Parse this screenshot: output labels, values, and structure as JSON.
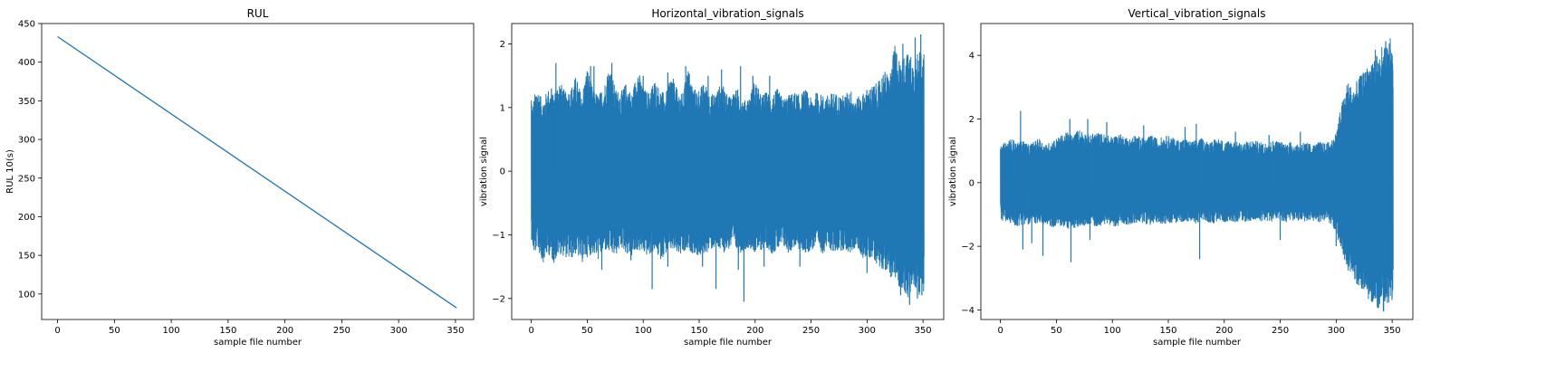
{
  "chart_data": [
    {
      "type": "line",
      "title": "RUL",
      "xlabel": "sample file number",
      "ylabel": "RUL 10(s)",
      "xlim": [
        -14,
        366
      ],
      "ylim": [
        67,
        450
      ],
      "xticks": [
        0,
        50,
        100,
        150,
        200,
        250,
        300,
        350
      ],
      "yticks": [
        100,
        150,
        200,
        250,
        300,
        350,
        400,
        450
      ],
      "grid": false,
      "color": "#1f77b4",
      "series": [
        {
          "x": [
            0,
            351
          ],
          "y": [
            433,
            82
          ]
        }
      ]
    },
    {
      "type": "line",
      "title": "Horizontal_vibration_signals",
      "xlabel": "sample file number",
      "ylabel": "vibration signal",
      "xlim": [
        -17.5,
        368.5
      ],
      "ylim": [
        -2.33,
        2.32
      ],
      "xticks": [
        0,
        50,
        100,
        150,
        200,
        250,
        300,
        350
      ],
      "yticks": [
        -2,
        -1,
        0,
        1,
        2
      ],
      "grid": false,
      "color": "#1f77b4",
      "envelope": {
        "x": [
          0,
          1,
          3,
          5,
          10,
          15,
          20,
          25,
          30,
          35,
          40,
          45,
          50,
          55,
          60,
          65,
          70,
          75,
          80,
          85,
          90,
          95,
          100,
          105,
          110,
          115,
          120,
          125,
          130,
          135,
          140,
          145,
          150,
          155,
          160,
          165,
          170,
          175,
          180,
          185,
          190,
          195,
          200,
          205,
          210,
          215,
          220,
          225,
          230,
          235,
          240,
          245,
          250,
          255,
          260,
          265,
          270,
          275,
          280,
          285,
          290,
          295,
          300,
          305,
          310,
          315,
          320,
          325,
          330,
          335,
          338,
          340,
          342,
          344,
          346,
          348,
          350,
          351
        ],
        "upper": [
          1.28,
          1.0,
          1.2,
          1.35,
          1.1,
          1.3,
          1.2,
          1.45,
          1.25,
          1.3,
          1.5,
          1.2,
          1.65,
          1.3,
          1.2,
          1.35,
          1.7,
          1.3,
          1.25,
          1.4,
          1.2,
          1.65,
          1.3,
          1.25,
          1.45,
          1.3,
          1.2,
          1.55,
          1.3,
          1.2,
          1.65,
          1.3,
          1.3,
          1.4,
          1.2,
          1.25,
          1.4,
          1.2,
          1.25,
          1.3,
          1.1,
          1.2,
          1.45,
          1.2,
          1.25,
          1.2,
          1.3,
          1.15,
          1.2,
          1.25,
          1.2,
          1.3,
          1.15,
          1.25,
          1.2,
          1.2,
          1.25,
          1.2,
          1.2,
          1.3,
          1.15,
          1.2,
          1.3,
          1.35,
          1.4,
          1.6,
          1.5,
          2.0,
          1.7,
          1.9,
          1.8,
          1.85,
          1.6,
          2.1,
          1.75,
          2.15,
          1.8,
          1.85
        ],
        "lower": [
          -1.05,
          -1.2,
          -1.35,
          -1.2,
          -1.45,
          -1.3,
          -1.45,
          -1.3,
          -1.35,
          -1.4,
          -1.3,
          -1.45,
          -1.35,
          -1.3,
          -1.4,
          -1.25,
          -1.3,
          -1.35,
          -1.2,
          -1.3,
          -1.35,
          -1.25,
          -1.3,
          -1.35,
          -1.25,
          -1.4,
          -1.3,
          -1.25,
          -1.3,
          -1.35,
          -1.25,
          -1.3,
          -1.35,
          -1.3,
          -1.25,
          -1.2,
          -1.3,
          -1.25,
          -1.2,
          -1.3,
          -1.25,
          -1.2,
          -1.3,
          -1.25,
          -1.2,
          -1.3,
          -1.25,
          -1.2,
          -1.3,
          -1.2,
          -1.25,
          -1.3,
          -1.25,
          -1.2,
          -1.3,
          -1.2,
          -1.3,
          -1.25,
          -1.25,
          -1.3,
          -1.2,
          -1.35,
          -1.4,
          -1.35,
          -1.5,
          -1.55,
          -1.65,
          -1.75,
          -1.85,
          -1.95,
          -2.1,
          -1.8,
          -1.95,
          -1.85,
          -2.05,
          -1.9,
          -1.85,
          -1.95
        ]
      },
      "spikes": [
        [
          18,
          1.3
        ],
        [
          22,
          1.7
        ],
        [
          53,
          1.65
        ],
        [
          56,
          1.65
        ],
        [
          72,
          1.7
        ],
        [
          100,
          1.5
        ],
        [
          122,
          1.55
        ],
        [
          138,
          1.65
        ],
        [
          158,
          1.5
        ],
        [
          170,
          1.6
        ],
        [
          187,
          1.65
        ],
        [
          198,
          1.5
        ],
        [
          213,
          1.5
        ],
        [
          332,
          2.0
        ],
        [
          343,
          2.1
        ],
        [
          348,
          2.15
        ],
        [
          63,
          -1.55
        ],
        [
          89,
          -1.4
        ],
        [
          108,
          -1.85
        ],
        [
          122,
          -1.5
        ],
        [
          153,
          -1.5
        ],
        [
          165,
          -1.85
        ],
        [
          185,
          -1.55
        ],
        [
          190,
          -2.05
        ],
        [
          208,
          -1.5
        ],
        [
          240,
          -1.5
        ],
        [
          300,
          -1.6
        ],
        [
          330,
          -1.95
        ],
        [
          338,
          -2.1
        ],
        [
          345,
          -2.0
        ],
        [
          349,
          -1.95
        ]
      ]
    },
    {
      "type": "line",
      "title": "Vertical_vibration_signals",
      "xlabel": "sample file number",
      "ylabel": "vibration signal",
      "xlim": [
        -17.5,
        368.5
      ],
      "ylim": [
        -4.3,
        5.0
      ],
      "xticks": [
        0,
        50,
        100,
        150,
        200,
        250,
        300,
        350
      ],
      "yticks": [
        -4,
        -2,
        0,
        2,
        4
      ],
      "grid": false,
      "color": "#1f77b4",
      "envelope": {
        "x": [
          0,
          1,
          3,
          5,
          10,
          15,
          20,
          25,
          30,
          35,
          40,
          45,
          50,
          55,
          60,
          65,
          70,
          75,
          80,
          85,
          90,
          95,
          100,
          105,
          110,
          115,
          120,
          125,
          130,
          135,
          140,
          145,
          150,
          155,
          160,
          165,
          170,
          175,
          180,
          185,
          190,
          195,
          200,
          205,
          210,
          215,
          220,
          225,
          230,
          235,
          240,
          245,
          250,
          255,
          260,
          265,
          270,
          275,
          280,
          285,
          290,
          295,
          300,
          305,
          310,
          315,
          320,
          325,
          330,
          335,
          338,
          340,
          342,
          344,
          346,
          348,
          350,
          351
        ],
        "upper": [
          1.2,
          1.1,
          1.25,
          1.3,
          1.4,
          1.25,
          1.35,
          1.2,
          1.3,
          1.4,
          1.2,
          1.3,
          1.4,
          1.5,
          1.6,
          1.5,
          1.7,
          1.6,
          1.5,
          1.6,
          1.55,
          1.5,
          1.45,
          1.55,
          1.5,
          1.4,
          1.5,
          1.45,
          1.4,
          1.5,
          1.4,
          1.45,
          1.5,
          1.4,
          1.35,
          1.4,
          1.3,
          1.35,
          1.4,
          1.3,
          1.35,
          1.4,
          1.3,
          1.35,
          1.3,
          1.25,
          1.3,
          1.35,
          1.3,
          1.25,
          1.3,
          1.35,
          1.3,
          1.25,
          1.3,
          1.2,
          1.3,
          1.25,
          1.2,
          1.3,
          1.25,
          1.3,
          1.6,
          2.5,
          3.2,
          3.0,
          3.3,
          3.5,
          3.8,
          4.2,
          3.9,
          4.4,
          4.1,
          4.5,
          4.3,
          4.6,
          4.2,
          3.8
        ],
        "lower": [
          -0.95,
          -1.3,
          -1.1,
          -1.25,
          -1.3,
          -1.4,
          -1.3,
          -1.35,
          -1.25,
          -1.4,
          -1.3,
          -1.45,
          -1.35,
          -1.4,
          -1.45,
          -1.5,
          -1.4,
          -1.35,
          -1.3,
          -1.4,
          -1.35,
          -1.3,
          -1.35,
          -1.4,
          -1.3,
          -1.35,
          -1.3,
          -1.25,
          -1.3,
          -1.35,
          -1.25,
          -1.3,
          -1.3,
          -1.25,
          -1.3,
          -1.2,
          -1.25,
          -1.3,
          -1.2,
          -1.25,
          -1.3,
          -1.2,
          -1.25,
          -1.2,
          -1.25,
          -1.2,
          -1.25,
          -1.2,
          -1.25,
          -1.2,
          -1.25,
          -1.2,
          -1.2,
          -1.25,
          -1.2,
          -1.2,
          -1.25,
          -1.2,
          -1.2,
          -1.25,
          -1.2,
          -1.3,
          -1.6,
          -2.2,
          -2.8,
          -3.0,
          -3.3,
          -3.6,
          -3.7,
          -3.9,
          -4.0,
          -3.8,
          -4.1,
          -3.9,
          -4.0,
          -3.85,
          -3.7,
          -3.2
        ]
      },
      "spikes": [
        [
          18,
          2.25
        ],
        [
          62,
          2.0
        ],
        [
          78,
          2.0
        ],
        [
          95,
          1.9
        ],
        [
          128,
          1.8
        ],
        [
          165,
          1.75
        ],
        [
          175,
          1.85
        ],
        [
          210,
          1.6
        ],
        [
          240,
          1.5
        ],
        [
          268,
          1.6
        ],
        [
          20,
          -2.1
        ],
        [
          28,
          -1.9
        ],
        [
          38,
          -2.3
        ],
        [
          63,
          -2.5
        ],
        [
          80,
          -1.8
        ],
        [
          178,
          -2.4
        ],
        [
          250,
          -1.8
        ],
        [
          300,
          -2.0
        ]
      ]
    }
  ]
}
